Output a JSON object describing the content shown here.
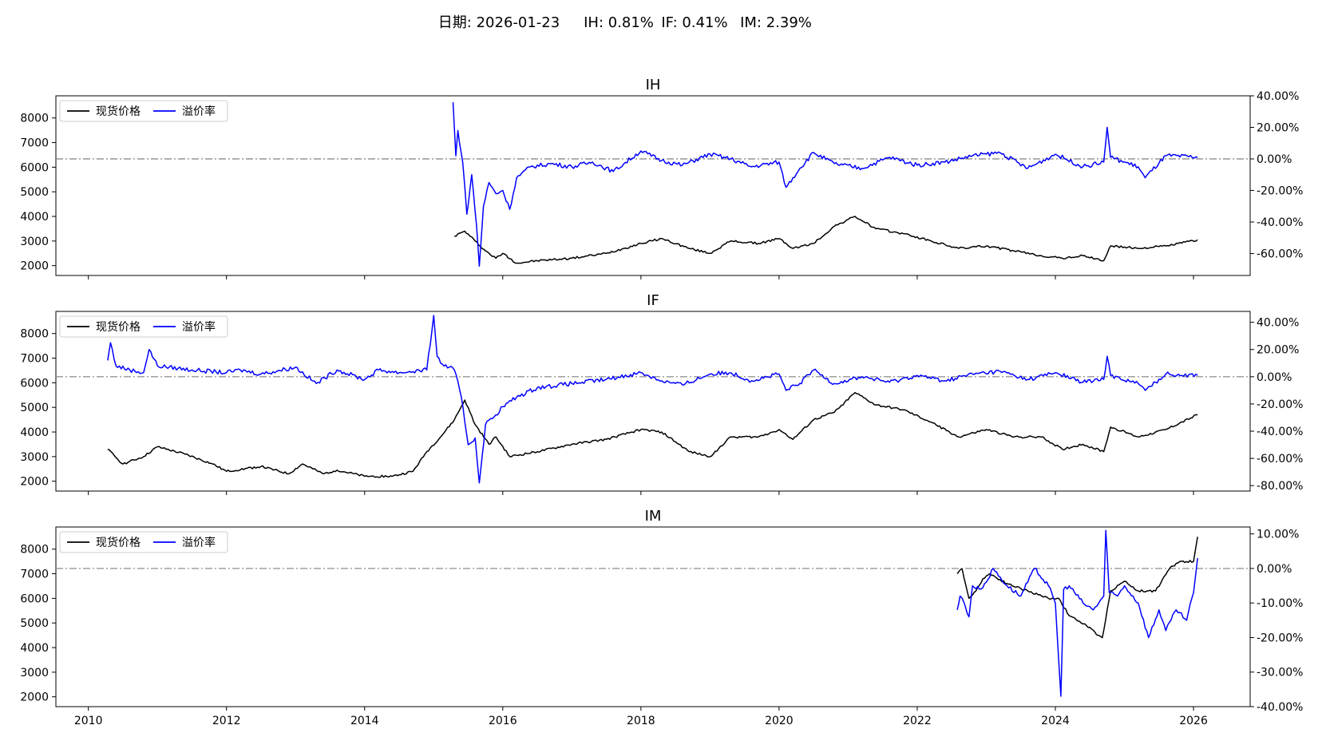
{
  "header": {
    "date_label": "日期: 2026-01-23",
    "ih_label": "IH: 0.81%",
    "if_label": "IF: 0.41%",
    "im_label": "IM: 2.39%"
  },
  "legend": {
    "spot_label": "现货价格",
    "premium_label": "溢价率"
  },
  "colors": {
    "spot": "#000000",
    "premium": "#0000ff",
    "zero_line": "#808080"
  },
  "x_axis": {
    "ticks": [
      "2010",
      "2012",
      "2014",
      "2016",
      "2018",
      "2020",
      "2022",
      "2024",
      "2026"
    ],
    "range": [
      2009.53,
      2026.82
    ]
  },
  "chart_data": [
    {
      "type": "line",
      "title": "IH",
      "left_axis": {
        "range": [
          1600,
          8900
        ],
        "ticks": [
          "2000",
          "3000",
          "4000",
          "5000",
          "6000",
          "7000",
          "8000"
        ]
      },
      "right_axis": {
        "range": [
          -0.739,
          0.4
        ],
        "ticks": [
          "-60.00%",
          "-40.00%",
          "-20.00%",
          "0.00%",
          "20.00%",
          "40.00%"
        ]
      },
      "zero_line": true,
      "legend_position": "upper left",
      "series": [
        {
          "name": "现货价格",
          "axis": "left",
          "x": [
            2015.3,
            2015.45,
            2015.6,
            2015.75,
            2015.9,
            2016.0,
            2016.2,
            2016.5,
            2017.0,
            2017.5,
            2018.0,
            2018.3,
            2018.7,
            2019.0,
            2019.3,
            2019.7,
            2020.0,
            2020.2,
            2020.5,
            2020.8,
            2021.1,
            2021.4,
            2021.8,
            2022.2,
            2022.6,
            2023.0,
            2023.4,
            2023.8,
            2024.1,
            2024.4,
            2024.7,
            2024.8,
            2025.2,
            2025.6,
            2026.06
          ],
          "y": [
            3200,
            3400,
            3000,
            2600,
            2300,
            2500,
            2100,
            2200,
            2300,
            2500,
            2900,
            3100,
            2700,
            2500,
            3000,
            2900,
            3100,
            2700,
            2900,
            3600,
            4000,
            3500,
            3300,
            3000,
            2700,
            2800,
            2600,
            2400,
            2300,
            2400,
            2200,
            2800,
            2700,
            2800,
            3050
          ]
        },
        {
          "name": "溢价率",
          "axis": "right",
          "x": [
            2015.28,
            2015.32,
            2015.35,
            2015.42,
            2015.48,
            2015.55,
            2015.62,
            2015.66,
            2015.72,
            2015.8,
            2015.9,
            2016.0,
            2016.1,
            2016.2,
            2016.4,
            2016.7,
            2017.0,
            2017.3,
            2017.6,
            2018.0,
            2018.3,
            2018.6,
            2019.0,
            2019.3,
            2019.6,
            2020.0,
            2020.1,
            2020.3,
            2020.5,
            2020.8,
            2021.2,
            2021.6,
            2022.0,
            2022.4,
            2022.8,
            2023.2,
            2023.6,
            2024.0,
            2024.4,
            2024.7,
            2024.75,
            2024.8,
            2025.2,
            2025.3,
            2025.6,
            2026.06
          ],
          "y": [
            0.36,
            0.02,
            0.18,
            -0.02,
            -0.35,
            -0.1,
            -0.42,
            -0.68,
            -0.3,
            -0.15,
            -0.22,
            -0.2,
            -0.32,
            -0.12,
            -0.05,
            -0.03,
            -0.05,
            -0.02,
            -0.08,
            0.05,
            -0.01,
            -0.04,
            0.03,
            0.0,
            -0.05,
            -0.02,
            -0.18,
            -0.06,
            0.04,
            -0.03,
            -0.06,
            0.01,
            -0.04,
            -0.02,
            0.02,
            0.04,
            -0.06,
            0.03,
            -0.05,
            -0.02,
            0.2,
            0.01,
            -0.05,
            -0.12,
            0.02,
            0.01
          ]
        }
      ]
    },
    {
      "type": "line",
      "title": "IF",
      "left_axis": {
        "range": [
          1600,
          8900
        ],
        "ticks": [
          "2000",
          "3000",
          "4000",
          "5000",
          "6000",
          "7000",
          "8000"
        ]
      },
      "right_axis": {
        "range": [
          -0.84,
          0.48
        ],
        "ticks": [
          "-80.00%",
          "-60.00%",
          "-40.00%",
          "-20.00%",
          "0.00%",
          "20.00%",
          "40.00%"
        ]
      },
      "zero_line": true,
      "legend_position": "upper left",
      "series": [
        {
          "name": "现货价格",
          "axis": "left",
          "x": [
            2010.28,
            2010.5,
            2010.8,
            2011.0,
            2011.4,
            2011.8,
            2012.0,
            2012.5,
            2012.9,
            2013.1,
            2013.4,
            2013.6,
            2014.0,
            2014.4,
            2014.7,
            2014.9,
            2015.1,
            2015.3,
            2015.45,
            2015.6,
            2015.8,
            2015.9,
            2016.1,
            2016.5,
            2017.0,
            2017.5,
            2018.0,
            2018.3,
            2018.7,
            2019.0,
            2019.3,
            2019.7,
            2020.0,
            2020.2,
            2020.5,
            2020.8,
            2021.1,
            2021.4,
            2021.8,
            2022.2,
            2022.6,
            2023.0,
            2023.4,
            2023.8,
            2024.1,
            2024.4,
            2024.7,
            2024.8,
            2025.2,
            2025.6,
            2026.06
          ],
          "y": [
            3300,
            2700,
            3000,
            3400,
            3100,
            2700,
            2400,
            2600,
            2300,
            2700,
            2300,
            2450,
            2200,
            2200,
            2400,
            3200,
            3800,
            4500,
            5300,
            4300,
            3500,
            3800,
            3000,
            3200,
            3500,
            3700,
            4100,
            4000,
            3200,
            3000,
            3800,
            3800,
            4100,
            3700,
            4500,
            4800,
            5600,
            5100,
            4900,
            4400,
            3800,
            4100,
            3800,
            3800,
            3300,
            3500,
            3200,
            4200,
            3800,
            4100,
            4700
          ]
        },
        {
          "name": "溢价率",
          "axis": "right",
          "x": [
            2010.28,
            2010.32,
            2010.4,
            2010.6,
            2010.8,
            2010.88,
            2011.0,
            2011.5,
            2012.0,
            2012.2,
            2012.5,
            2013.0,
            2013.3,
            2013.6,
            2014.0,
            2014.2,
            2014.5,
            2014.9,
            2015.0,
            2015.05,
            2015.1,
            2015.3,
            2015.4,
            2015.5,
            2015.6,
            2015.66,
            2015.75,
            2015.9,
            2016.0,
            2016.2,
            2016.5,
            2017.0,
            2017.5,
            2018.0,
            2018.3,
            2018.6,
            2019.0,
            2019.3,
            2019.6,
            2020.0,
            2020.1,
            2020.3,
            2020.5,
            2020.8,
            2021.2,
            2021.6,
            2022.0,
            2022.4,
            2022.8,
            2023.2,
            2023.6,
            2024.0,
            2024.4,
            2024.7,
            2024.75,
            2024.8,
            2025.2,
            2025.3,
            2025.6,
            2026.06
          ],
          "y": [
            0.12,
            0.25,
            0.08,
            0.05,
            0.03,
            0.2,
            0.08,
            0.05,
            0.03,
            0.05,
            0.02,
            0.07,
            -0.05,
            0.05,
            -0.02,
            0.05,
            0.03,
            0.05,
            0.45,
            0.15,
            0.1,
            0.05,
            -0.15,
            -0.5,
            -0.45,
            -0.78,
            -0.35,
            -0.28,
            -0.22,
            -0.15,
            -0.08,
            -0.05,
            -0.02,
            0.03,
            -0.03,
            -0.06,
            0.02,
            0.03,
            -0.03,
            0.02,
            -0.1,
            -0.05,
            0.05,
            -0.05,
            0.0,
            -0.04,
            0.01,
            -0.03,
            0.02,
            0.04,
            -0.02,
            0.03,
            -0.04,
            -0.02,
            0.15,
            0.01,
            -0.05,
            -0.1,
            0.02,
            0.01
          ]
        }
      ]
    },
    {
      "type": "line",
      "title": "IM",
      "left_axis": {
        "range": [
          1600,
          8900
        ],
        "ticks": [
          "2000",
          "3000",
          "4000",
          "5000",
          "6000",
          "7000",
          "8000"
        ]
      },
      "right_axis": {
        "range": [
          -0.4,
          0.12
        ],
        "ticks": [
          "-40.00%",
          "-30.00%",
          "-20.00%",
          "-10.00%",
          "0.00%",
          "10.00%"
        ]
      },
      "zero_line": true,
      "legend_position": "upper left",
      "series": [
        {
          "name": "现货价格",
          "axis": "left",
          "x": [
            2022.58,
            2022.65,
            2022.75,
            2022.85,
            2022.95,
            2023.05,
            2023.3,
            2023.6,
            2023.9,
            2024.05,
            2024.2,
            2024.45,
            2024.62,
            2024.68,
            2024.8,
            2025.0,
            2025.2,
            2025.45,
            2025.65,
            2025.8,
            2026.0,
            2026.06
          ],
          "y": [
            7000,
            7200,
            6000,
            6300,
            6800,
            7000,
            6600,
            6300,
            6000,
            6000,
            5300,
            4900,
            4500,
            4400,
            6300,
            6700,
            6300,
            6300,
            7200,
            7500,
            7500,
            8500
          ]
        },
        {
          "name": "溢价率",
          "axis": "right",
          "x": [
            2022.58,
            2022.62,
            2022.68,
            2022.75,
            2022.8,
            2022.9,
            2023.0,
            2023.1,
            2023.3,
            2023.5,
            2023.7,
            2023.9,
            2024.0,
            2024.05,
            2024.08,
            2024.12,
            2024.2,
            2024.4,
            2024.55,
            2024.7,
            2024.73,
            2024.78,
            2024.9,
            2025.0,
            2025.2,
            2025.35,
            2025.5,
            2025.6,
            2025.75,
            2025.9,
            2026.0,
            2026.06
          ],
          "y": [
            -0.12,
            -0.08,
            -0.1,
            -0.14,
            -0.05,
            -0.06,
            -0.04,
            0.0,
            -0.05,
            -0.08,
            0.0,
            -0.05,
            -0.1,
            -0.27,
            -0.37,
            -0.06,
            -0.05,
            -0.1,
            -0.12,
            -0.08,
            0.11,
            -0.07,
            -0.08,
            -0.05,
            -0.1,
            -0.2,
            -0.12,
            -0.18,
            -0.12,
            -0.15,
            -0.07,
            0.03
          ]
        }
      ]
    }
  ]
}
